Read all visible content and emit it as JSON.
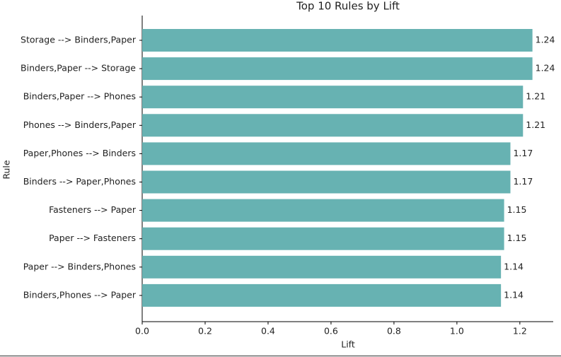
{
  "chart_data": {
    "type": "barh",
    "title": "Top 10 Rules by Lift",
    "x_label": "Lift",
    "y_label": "Rule",
    "categories": [
      "Storage --> Binders,Paper",
      "Binders,Paper --> Storage",
      "Binders,Paper --> Phones",
      "Phones --> Binders,Paper",
      "Paper,Phones --> Binders",
      "Binders --> Paper,Phones",
      "Fasteners --> Paper",
      "Paper --> Fasteners",
      "Paper --> Binders,Phones",
      "Binders,Phones --> Paper"
    ],
    "values": [
      1.24,
      1.24,
      1.21,
      1.21,
      1.17,
      1.17,
      1.15,
      1.15,
      1.14,
      1.14
    ],
    "color": "#67b2b2",
    "xlim": [
      0,
      1.306
    ],
    "xticks": [
      {
        "value": 0,
        "label": "0.0"
      },
      0.2,
      0.4,
      0.6,
      0.8,
      {
        "value": 1,
        "label": "1.0"
      },
      1.2
    ]
  }
}
